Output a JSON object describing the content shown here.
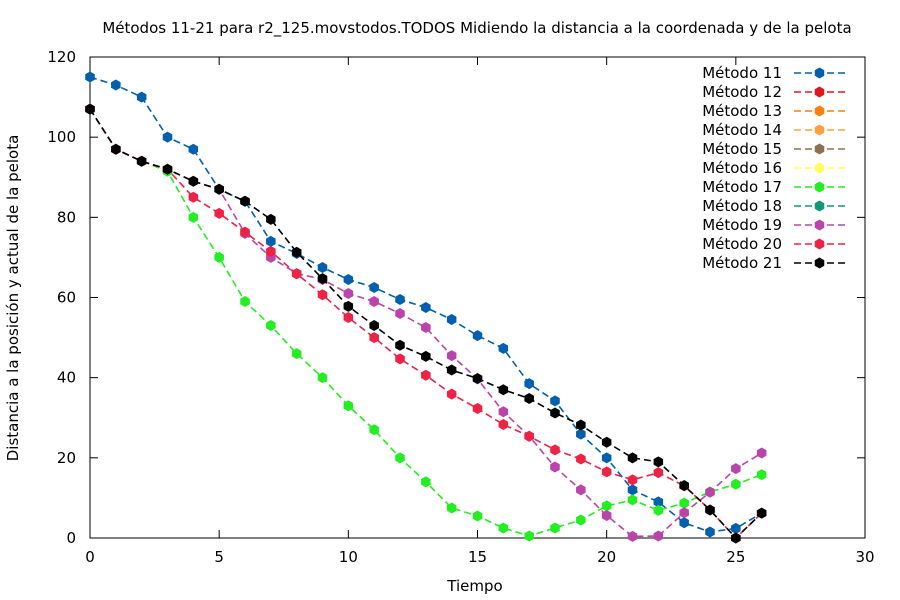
{
  "chart_data": {
    "type": "line",
    "title": "Métodos 11-21 para r2_125.movstodos.TODOS Midiendo la distancia a la coordenada y de la pelota",
    "xlabel": "Tiempo",
    "ylabel": "Distancia a la posición y actual de la pelota",
    "xlim": [
      0,
      30
    ],
    "ylim": [
      0,
      120
    ],
    "xticks": [
      0,
      5,
      10,
      15,
      20,
      25,
      30
    ],
    "yticks": [
      0,
      20,
      40,
      60,
      80,
      100,
      120
    ],
    "legend_position": "top-right",
    "grid": false,
    "series": [
      {
        "name": "Método 11",
        "color": "#0060ad",
        "x": [
          0,
          1,
          2,
          3,
          4,
          5,
          6,
          7,
          8,
          9,
          10,
          11,
          12,
          13,
          14,
          15,
          16,
          17,
          18,
          19,
          20,
          21,
          22,
          23,
          24,
          25,
          26
        ],
        "values": [
          115,
          113,
          110,
          100,
          97,
          87,
          84,
          74,
          71,
          67.5,
          64.5,
          62.5,
          59.5,
          57.5,
          54.5,
          50.5,
          47.3,
          38.5,
          34.2,
          25.9,
          20,
          12,
          9,
          3.8,
          1.5,
          2.4,
          6.2
        ]
      },
      {
        "name": "Método 12",
        "color": "#dd181f",
        "x": [],
        "values": []
      },
      {
        "name": "Método 13",
        "color": "#ff7f0e",
        "x": [],
        "values": []
      },
      {
        "name": "Método 14",
        "color": "#ffa040",
        "x": [],
        "values": []
      },
      {
        "name": "Método 15",
        "color": "#8b7351",
        "x": [],
        "values": []
      },
      {
        "name": "Método 16",
        "color": "#ffff60",
        "x": [],
        "values": []
      },
      {
        "name": "Método 17",
        "color": "#22ee22",
        "x": [
          0,
          1,
          2,
          3,
          4,
          5,
          6,
          7,
          8,
          9,
          10,
          11,
          12,
          13,
          14,
          15,
          16,
          17,
          18,
          19,
          20,
          21,
          22,
          23,
          24,
          25,
          26
        ],
        "values": [
          107,
          97,
          94,
          91.5,
          80,
          70,
          59,
          53,
          46,
          40,
          33,
          27,
          20,
          14,
          7.5,
          5.5,
          2.5,
          0.5,
          2.5,
          4.5,
          8,
          9.5,
          6.9,
          8.7,
          11.5,
          13.4,
          15.8
        ]
      },
      {
        "name": "Método 18",
        "color": "#119977",
        "x": [],
        "values": []
      },
      {
        "name": "Método 19",
        "color": "#bb44aa",
        "x": [
          0,
          1,
          2,
          3,
          4,
          5,
          6,
          7,
          8,
          9,
          10,
          11,
          12,
          13,
          14,
          15,
          16,
          17,
          18,
          19,
          20,
          21,
          22,
          23,
          24,
          25,
          26
        ],
        "values": [
          107,
          97,
          94,
          92,
          89,
          87,
          76,
          70,
          66,
          64.5,
          61,
          59,
          56,
          52.5,
          45.5,
          39.7,
          31.5,
          25.4,
          17.7,
          12,
          5.6,
          0.4,
          0.5,
          6.3,
          11.4,
          17.3,
          21.2
        ]
      },
      {
        "name": "Método 20",
        "color": "#ee2244",
        "x": [
          0,
          1,
          2,
          3,
          4,
          5,
          6,
          7,
          8,
          9,
          10,
          11,
          12,
          13,
          14,
          15,
          16,
          17,
          18,
          19,
          20,
          21,
          22,
          23,
          24,
          25,
          26
        ],
        "values": [
          107,
          97,
          94,
          92,
          85,
          81,
          76.3,
          71.5,
          65.9,
          60.7,
          55,
          50,
          44.7,
          40.6,
          35.9,
          32.3,
          28.3,
          25.4,
          22,
          19.7,
          16.5,
          14.5,
          16.3,
          13,
          7,
          0,
          6.2
        ]
      },
      {
        "name": "Método 21",
        "color": "#000000",
        "x": [
          0,
          1,
          2,
          3,
          4,
          5,
          6,
          7,
          8,
          9,
          10,
          11,
          12,
          13,
          14,
          15,
          16,
          17,
          18,
          19,
          20,
          21,
          22,
          23,
          24,
          25,
          26
        ],
        "values": [
          107,
          97,
          94,
          92,
          89,
          87,
          84,
          79.5,
          71.3,
          64.7,
          57.8,
          53,
          48.1,
          45.3,
          41.9,
          39.8,
          37,
          34.8,
          31.2,
          28.2,
          23.9,
          20,
          19,
          13.1,
          7,
          0,
          6.2
        ]
      }
    ]
  }
}
